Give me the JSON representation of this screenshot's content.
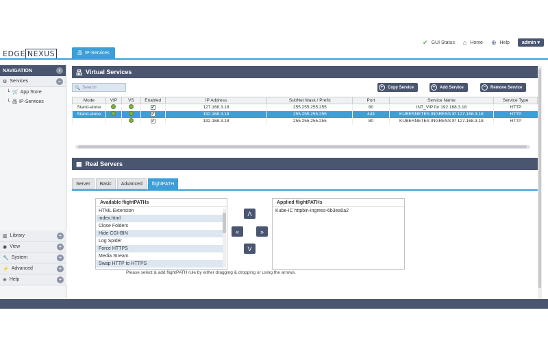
{
  "topnav": {
    "gui_status": "GUI Status",
    "home": "Home",
    "help": "Help",
    "user": "admin"
  },
  "logo": {
    "left": "EDGE",
    "right": "NEXUS"
  },
  "page_tab": "IP-Services",
  "sidebar": {
    "heading": "NAVIGATION",
    "services": "Services",
    "sub_items": [
      "App Store",
      "IP-Services"
    ],
    "bottom": [
      "Library",
      "View",
      "System",
      "Advanced",
      "Help"
    ]
  },
  "virtual_services": {
    "title": "Virtual Services",
    "search_placeholder": "Search",
    "buttons": {
      "copy": "Copy Service",
      "add": "Add Service",
      "remove": "Remove Service"
    },
    "columns": [
      "Mode",
      "VIP",
      "VS",
      "Enabled",
      "IP Address",
      "SubNet Mask / Prefix",
      "Port",
      "Service Name",
      "Service Type"
    ],
    "rows": [
      {
        "mode": "Stand-alone",
        "vip": true,
        "vs": true,
        "enabled": true,
        "ip": "127.168.3.18",
        "mask": "255.255.255.255",
        "port": "80",
        "name": "INT_VIP for 192.168.3.18",
        "type": "HTTP",
        "selected": false
      },
      {
        "mode": "Stand-alone",
        "vip": true,
        "vs": true,
        "enabled": true,
        "ip": "192.168.3.18",
        "mask": "255.255.255.255",
        "port": "443",
        "name": "KUBERNETES INGRESS IP 127.168.3.18",
        "type": "HTTP",
        "selected": true
      },
      {
        "mode": "",
        "vip": false,
        "vs": true,
        "enabled": true,
        "ip": "192.168.3.18",
        "mask": "255.255.255.255",
        "port": "80",
        "name": "KUBERNETES INGRESS IP 127.168.3.18",
        "type": "HTTP",
        "selected": false
      }
    ]
  },
  "real_servers": {
    "title": "Real Servers",
    "tabs": [
      "Server",
      "Basic",
      "Advanced",
      "flightPATH"
    ],
    "active_tab": "flightPATH",
    "available_title": "Available flightPATHs",
    "available": [
      "HTML Extension",
      "index.html",
      "Close Folders",
      "Hide CGI-BIN",
      "Log Spider",
      "Force HTTPS",
      "Media Stream",
      "Swap HTTP to HTTPS"
    ],
    "applied_title": "Applied flightPATHs",
    "applied": [
      "Kube-IC httpbin-ingress-6b3ea0a2"
    ],
    "arrows": {
      "up": "Λ",
      "left": "«",
      "right": "»",
      "down": "V"
    },
    "hint": "Please select & add flightPATH rule by either dragging & dropping or using the arrows."
  }
}
